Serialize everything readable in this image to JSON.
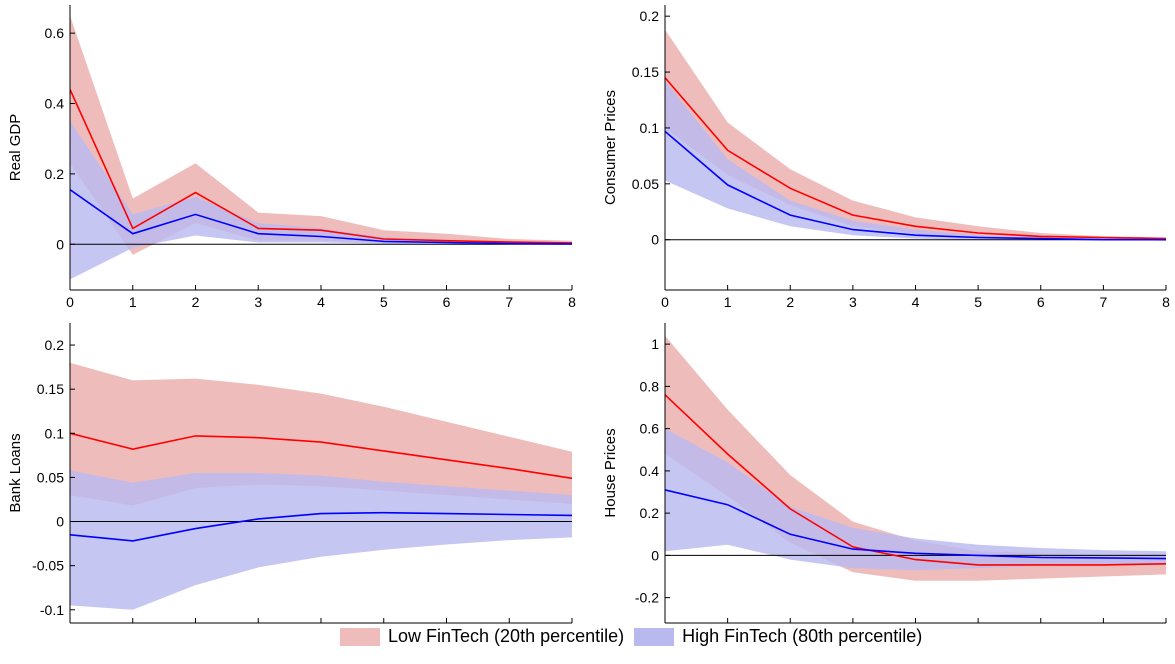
{
  "colors": {
    "low_band": "#efbcbc",
    "high_band": "#b9b9f0",
    "overlap_band": "#a78bc8",
    "low_line": "#ff0000",
    "high_line": "#0000ff",
    "zero_line": "#000000"
  },
  "legend": {
    "low_label": "Low FinTech (20th percentile)",
    "high_label": "High FinTech (80th percentile)"
  },
  "chart_data": [
    {
      "type": "area",
      "ylabel": "Real GDP",
      "xlim": [
        0,
        8
      ],
      "ylim": [
        -0.13,
        0.68
      ],
      "xticks": [
        0,
        1,
        2,
        3,
        4,
        5,
        6,
        7,
        8
      ],
      "yticks": [
        0,
        0.2,
        0.4,
        0.6
      ],
      "yticklabels": [
        "0",
        "0.2",
        "0.4",
        "0.6"
      ],
      "x": [
        0,
        1,
        2,
        3,
        4,
        5,
        6,
        7,
        8
      ],
      "series": [
        {
          "name": "Low FinTech (20th percentile)",
          "values": [
            0.44,
            0.045,
            0.147,
            0.045,
            0.04,
            0.015,
            0.01,
            0.006,
            0.004
          ],
          "lower": [
            0.23,
            -0.03,
            0.06,
            0.01,
            0.01,
            0.005,
            0.002,
            0.001,
            0.0
          ],
          "upper": [
            0.65,
            0.13,
            0.23,
            0.09,
            0.08,
            0.04,
            0.03,
            0.015,
            0.01
          ]
        },
        {
          "name": "High FinTech (80th percentile)",
          "values": [
            0.155,
            0.03,
            0.085,
            0.03,
            0.022,
            0.008,
            0.005,
            0.002,
            0.001
          ],
          "lower": [
            -0.1,
            -0.01,
            0.025,
            0.005,
            0.005,
            0.002,
            0.001,
            0.0,
            0.0
          ],
          "upper": [
            0.35,
            0.085,
            0.135,
            0.06,
            0.045,
            0.02,
            0.012,
            0.006,
            0.003
          ]
        }
      ]
    },
    {
      "type": "area",
      "ylabel": "Consumer Prices",
      "xlim": [
        0,
        8
      ],
      "ylim": [
        -0.045,
        0.21
      ],
      "xticks": [
        0,
        1,
        2,
        3,
        4,
        5,
        6,
        7,
        8
      ],
      "yticks": [
        0,
        0.05,
        0.1,
        0.15,
        0.2
      ],
      "yticklabels": [
        "0",
        "0.05",
        "0.1",
        "0.15",
        "0.2"
      ],
      "x": [
        0,
        1,
        2,
        3,
        4,
        5,
        6,
        7,
        8
      ],
      "series": [
        {
          "name": "Low FinTech (20th percentile)",
          "values": [
            0.145,
            0.08,
            0.046,
            0.022,
            0.012,
            0.006,
            0.003,
            0.002,
            0.001
          ],
          "lower": [
            0.1,
            0.058,
            0.031,
            0.012,
            0.005,
            0.002,
            0.001,
            0.0,
            0.0
          ],
          "upper": [
            0.188,
            0.105,
            0.063,
            0.035,
            0.02,
            0.012,
            0.006,
            0.003,
            0.002
          ]
        },
        {
          "name": "High FinTech (80th percentile)",
          "values": [
            0.097,
            0.049,
            0.022,
            0.009,
            0.004,
            0.002,
            0.001,
            0.0,
            0.0
          ],
          "lower": [
            0.053,
            0.028,
            0.012,
            0.004,
            0.001,
            0.0,
            0.0,
            0.0,
            -0.001
          ],
          "upper": [
            0.142,
            0.072,
            0.035,
            0.017,
            0.009,
            0.004,
            0.002,
            0.001,
            0.0
          ]
        }
      ]
    },
    {
      "type": "area",
      "ylabel": "Bank Loans",
      "xlim": [
        0,
        8
      ],
      "ylim": [
        -0.115,
        0.225
      ],
      "xticks": [
        0,
        1,
        2,
        3,
        4,
        5,
        6,
        7,
        8
      ],
      "yticks": [
        -0.1,
        -0.05,
        0,
        0.05,
        0.1,
        0.15,
        0.2
      ],
      "yticklabels": [
        "-0.1",
        "-0.05",
        "0",
        "0.05",
        "0.1",
        "0.15",
        "0.2"
      ],
      "x": [
        0,
        1,
        2,
        3,
        4,
        5,
        6,
        7,
        8
      ],
      "series": [
        {
          "name": "Low FinTech (20th percentile)",
          "values": [
            0.1,
            0.082,
            0.097,
            0.095,
            0.09,
            0.08,
            0.07,
            0.06,
            0.049
          ],
          "lower": [
            0.03,
            0.018,
            0.038,
            0.042,
            0.04,
            0.035,
            0.03,
            0.025,
            0.02
          ],
          "upper": [
            0.18,
            0.16,
            0.162,
            0.155,
            0.145,
            0.13,
            0.113,
            0.096,
            0.079
          ]
        },
        {
          "name": "High FinTech (80th percentile)",
          "values": [
            -0.015,
            -0.022,
            -0.008,
            0.003,
            0.009,
            0.01,
            0.009,
            0.008,
            0.007
          ],
          "lower": [
            -0.095,
            -0.1,
            -0.072,
            -0.052,
            -0.04,
            -0.032,
            -0.026,
            -0.021,
            -0.018
          ],
          "upper": [
            0.058,
            0.044,
            0.055,
            0.055,
            0.052,
            0.045,
            0.04,
            0.035,
            0.03
          ]
        }
      ]
    },
    {
      "type": "area",
      "ylabel": "House Prices",
      "xlim": [
        0,
        8
      ],
      "ylim": [
        -0.32,
        1.1
      ],
      "xticks": [
        0,
        1,
        2,
        3,
        4,
        5,
        6,
        7,
        8
      ],
      "yticks": [
        -0.2,
        0,
        0.2,
        0.4,
        0.6,
        0.8,
        1
      ],
      "yticklabels": [
        "-0.2",
        "0",
        "0.2",
        "0.4",
        "0.6",
        "0.8",
        "1"
      ],
      "x": [
        0,
        1,
        2,
        3,
        4,
        5,
        6,
        7,
        8
      ],
      "series": [
        {
          "name": "Low FinTech (20th percentile)",
          "values": [
            0.76,
            0.48,
            0.22,
            0.04,
            -0.02,
            -0.045,
            -0.045,
            -0.045,
            -0.04
          ],
          "lower": [
            0.48,
            0.28,
            0.06,
            -0.08,
            -0.12,
            -0.12,
            -0.11,
            -0.1,
            -0.09
          ],
          "upper": [
            1.04,
            0.69,
            0.38,
            0.16,
            0.07,
            0.02,
            0.01,
            0.005,
            0.005
          ]
        },
        {
          "name": "High FinTech (80th percentile)",
          "values": [
            0.31,
            0.24,
            0.1,
            0.03,
            0.01,
            0.0,
            -0.01,
            -0.012,
            -0.015
          ],
          "lower": [
            0.02,
            0.05,
            -0.02,
            -0.06,
            -0.07,
            -0.06,
            -0.05,
            -0.045,
            -0.045
          ],
          "upper": [
            0.6,
            0.44,
            0.23,
            0.13,
            0.08,
            0.05,
            0.035,
            0.025,
            0.02
          ]
        }
      ]
    }
  ]
}
